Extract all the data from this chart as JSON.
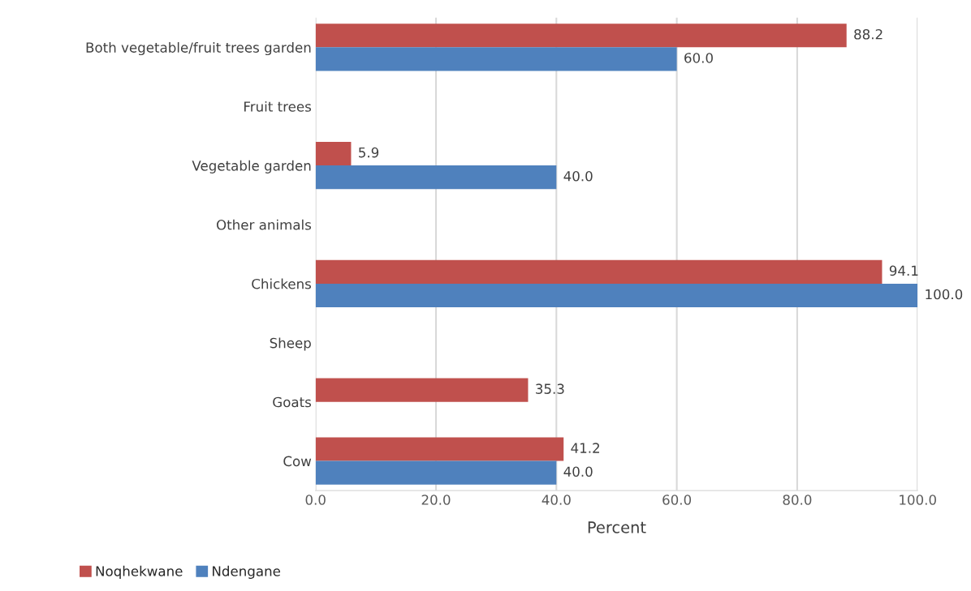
{
  "chart_data": {
    "type": "bar",
    "orientation": "horizontal",
    "categories": [
      "Both vegetable/fruit trees garden",
      "Fruit trees",
      "Vegetable garden",
      "Other animals",
      "Chickens",
      "Sheep",
      "Goats",
      "Cow"
    ],
    "series": [
      {
        "name": "Noqhekwane",
        "color": "#c0504d",
        "values": [
          88.2,
          0,
          5.9,
          0,
          94.1,
          0,
          35.3,
          41.2
        ],
        "value_labels": [
          "88.2",
          null,
          "5.9",
          null,
          "94.1",
          null,
          "35.3",
          "41.2"
        ]
      },
      {
        "name": "Ndengane",
        "color": "#4f81bd",
        "values": [
          60.0,
          0,
          40.0,
          0,
          100.0,
          0,
          0,
          40.0
        ],
        "value_labels": [
          "60.0",
          null,
          "40.0",
          null,
          "100.0",
          null,
          null,
          "40.0"
        ]
      }
    ],
    "xlim": [
      0,
      100
    ],
    "xticks": [
      {
        "value": 0,
        "label": "0.0"
      },
      {
        "value": 20,
        "label": "20.0"
      },
      {
        "value": 40,
        "label": "40.0"
      },
      {
        "value": 60,
        "label": "60.0"
      },
      {
        "value": 80,
        "label": "80.0"
      },
      {
        "value": 100,
        "label": "100.0"
      }
    ],
    "xlabel": "Percent",
    "grid": "x",
    "legend": "bottom left"
  }
}
